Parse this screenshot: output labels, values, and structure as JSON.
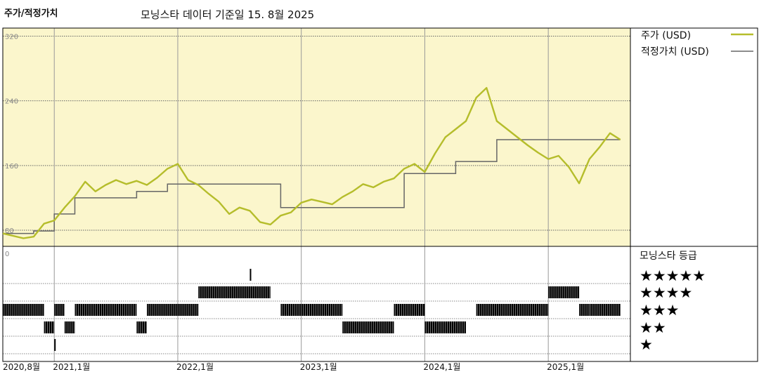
{
  "title": "주가/적정가치",
  "subtitle": "모닝스타 데이터 기준일 15. 8월 2025",
  "colors": {
    "price": "#b5bd2b",
    "fair_value": "#666666",
    "panel_bg": "#fbf6cc",
    "rating_bar": "#000000"
  },
  "legend": {
    "price_label": "주가 (USD)",
    "fair_value_label": "적정가치 (USD)"
  },
  "rating_legend": {
    "title": "모닝스타 등급",
    "rows": [
      "★★★★★",
      "★★★★",
      "★★★",
      "★★",
      "★"
    ]
  },
  "chart_data": {
    "type": "line",
    "x_axis": {
      "start": "2020-08",
      "end": "2025-08-15",
      "tick_labels": [
        "2020,8월",
        "2021,1월",
        "2022,1월",
        "2023,1월",
        "2024,1월",
        "2025,1월"
      ],
      "tick_dates": [
        "2020-08",
        "2021-01",
        "2022-01",
        "2023-01",
        "2024-01",
        "2025-01"
      ]
    },
    "y_axis": {
      "ylim": [
        60,
        330
      ],
      "ticks": [
        80,
        160,
        240,
        320
      ],
      "tick_labels": [
        "80",
        "160",
        "240",
        "320"
      ]
    },
    "rating_axis_label": "0",
    "series": [
      {
        "name": "주가 (USD)",
        "points": [
          [
            "2020-08",
            76
          ],
          [
            "2020-10",
            70
          ],
          [
            "2020-11",
            72
          ],
          [
            "2020-12",
            88
          ],
          [
            "2021-01",
            92
          ],
          [
            "2021-02",
            108
          ],
          [
            "2021-03",
            122
          ],
          [
            "2021-04",
            140
          ],
          [
            "2021-05",
            128
          ],
          [
            "2021-06",
            136
          ],
          [
            "2021-07",
            142
          ],
          [
            "2021-08",
            137
          ],
          [
            "2021-09",
            141
          ],
          [
            "2021-10",
            136
          ],
          [
            "2021-11",
            145
          ],
          [
            "2021-12",
            156
          ],
          [
            "2022-01",
            162
          ],
          [
            "2022-02",
            142
          ],
          [
            "2022-03",
            136
          ],
          [
            "2022-04",
            125
          ],
          [
            "2022-05",
            115
          ],
          [
            "2022-06",
            100
          ],
          [
            "2022-07",
            108
          ],
          [
            "2022-08",
            104
          ],
          [
            "2022-09",
            90
          ],
          [
            "2022-10",
            87
          ],
          [
            "2022-11",
            98
          ],
          [
            "2022-12",
            102
          ],
          [
            "2023-01",
            114
          ],
          [
            "2023-02",
            118
          ],
          [
            "2023-03",
            115
          ],
          [
            "2023-04",
            112
          ],
          [
            "2023-05",
            121
          ],
          [
            "2023-06",
            128
          ],
          [
            "2023-07",
            137
          ],
          [
            "2023-08",
            133
          ],
          [
            "2023-09",
            140
          ],
          [
            "2023-10",
            144
          ],
          [
            "2023-11",
            156
          ],
          [
            "2023-12",
            162
          ],
          [
            "2024-01",
            152
          ],
          [
            "2024-02",
            175
          ],
          [
            "2024-03",
            195
          ],
          [
            "2024-04",
            205
          ],
          [
            "2024-05",
            215
          ],
          [
            "2024-06",
            244
          ],
          [
            "2024-07",
            256
          ],
          [
            "2024-08",
            215
          ],
          [
            "2024-09",
            205
          ],
          [
            "2024-10",
            195
          ],
          [
            "2024-11",
            185
          ],
          [
            "2024-12",
            176
          ],
          [
            "2025-01",
            168
          ],
          [
            "2025-02",
            172
          ],
          [
            "2025-03",
            158
          ],
          [
            "2025-04",
            138
          ],
          [
            "2025-05",
            168
          ],
          [
            "2025-06",
            183
          ],
          [
            "2025-07",
            200
          ],
          [
            "2025-08",
            192
          ]
        ]
      },
      {
        "name": "적정가치 (USD)",
        "points": [
          [
            "2020-08",
            76
          ],
          [
            "2020-11",
            76
          ],
          [
            "2020-11",
            79
          ],
          [
            "2021-01",
            79
          ],
          [
            "2021-01",
            100
          ],
          [
            "2021-03",
            100
          ],
          [
            "2021-03",
            120
          ],
          [
            "2021-09",
            120
          ],
          [
            "2021-09",
            128
          ],
          [
            "2021-12",
            128
          ],
          [
            "2021-12",
            137
          ],
          [
            "2022-11",
            137
          ],
          [
            "2022-11",
            108
          ],
          [
            "2023-11",
            108
          ],
          [
            "2023-11",
            150
          ],
          [
            "2024-04",
            150
          ],
          [
            "2024-04",
            165
          ],
          [
            "2024-08",
            165
          ],
          [
            "2024-08",
            192
          ],
          [
            "2025-08",
            192
          ]
        ]
      }
    ],
    "rating_timeline": {
      "row_order": [
        "5 stars",
        "4 stars",
        "3 stars",
        "2 stars",
        "1 star"
      ],
      "segments": [
        {
          "stars": 3,
          "start": "2020-08",
          "end": "2020-12"
        },
        {
          "stars": 2,
          "start": "2020-12",
          "end": "2021-01"
        },
        {
          "stars": 1,
          "start": "2021-01",
          "end": "2021-01"
        },
        {
          "stars": 3,
          "start": "2021-01",
          "end": "2021-02"
        },
        {
          "stars": 2,
          "start": "2021-02",
          "end": "2021-03"
        },
        {
          "stars": 3,
          "start": "2021-03",
          "end": "2021-09"
        },
        {
          "stars": 2,
          "start": "2021-09",
          "end": "2021-10"
        },
        {
          "stars": 3,
          "start": "2021-10",
          "end": "2022-03"
        },
        {
          "stars": 4,
          "start": "2022-03",
          "end": "2022-10"
        },
        {
          "stars": 5,
          "start": "2022-08",
          "end": "2022-08"
        },
        {
          "stars": 3,
          "start": "2022-11",
          "end": "2023-05"
        },
        {
          "stars": 2,
          "start": "2023-05",
          "end": "2023-10"
        },
        {
          "stars": 3,
          "start": "2023-10",
          "end": "2024-01"
        },
        {
          "stars": 2,
          "start": "2024-01",
          "end": "2024-05"
        },
        {
          "stars": 3,
          "start": "2024-06",
          "end": "2025-01"
        },
        {
          "stars": 4,
          "start": "2025-01",
          "end": "2025-04"
        },
        {
          "stars": 3,
          "start": "2025-04",
          "end": "2025-05"
        },
        {
          "stars": 3,
          "start": "2025-05",
          "end": "2025-08"
        }
      ]
    }
  }
}
